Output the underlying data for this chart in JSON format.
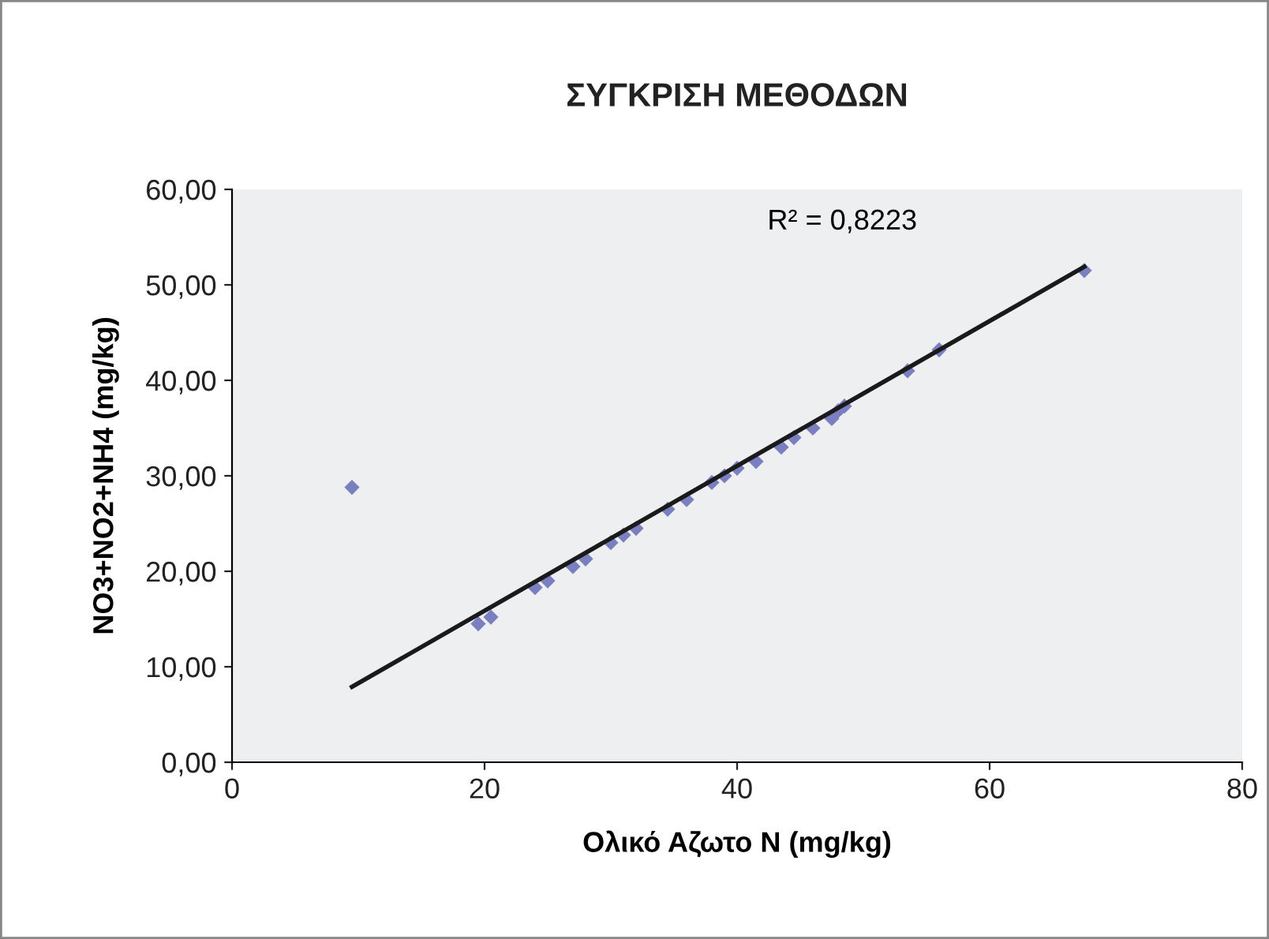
{
  "chart_data": {
    "type": "scatter",
    "title": "ΣΥΓΚΡΙΣΗ ΜΕΘΟΔΩΝ",
    "xlabel": "Ολικό Αζωτο Ν (mg/kg)",
    "ylabel": "NO3+NO2+NH4 (mg/kg)",
    "annotations": [
      "R² = 0,8223"
    ],
    "series": [
      {
        "color": "#7a7fc0",
        "marker": "diamond",
        "x": [
          9.5,
          19.5,
          20.5,
          24,
          25,
          27,
          28,
          30,
          31,
          32,
          34.5,
          36,
          38,
          39,
          40,
          41.5,
          43.5,
          44.5,
          46,
          47.5,
          48,
          48.5,
          53.5,
          56,
          67.5
        ],
        "values": [
          28.8,
          14.5,
          15.2,
          18.3,
          19,
          20.5,
          21.3,
          23,
          23.8,
          24.5,
          26.5,
          27.5,
          29.3,
          30,
          30.8,
          31.5,
          33,
          34,
          35,
          36,
          36.8,
          37.3,
          41,
          43.2,
          51.5
        ]
      },
      {
        "type": "line",
        "color": "#1a1a1a",
        "marker": "none",
        "line_style": "solid",
        "x": [
          9.5,
          67.5
        ],
        "values": [
          7.9,
          51.9
        ]
      }
    ],
    "xlim": [
      0,
      80
    ],
    "xticks": [
      0,
      20,
      40,
      60,
      80
    ],
    "ylim": [
      0,
      60
    ],
    "yticks": [
      {
        "value": 0,
        "label": "0,00"
      },
      {
        "value": 10,
        "label": "10,00"
      },
      {
        "value": 20,
        "label": "20,00"
      },
      {
        "value": 30,
        "label": "30,00"
      },
      {
        "value": 40,
        "label": "40,00"
      },
      {
        "value": 50,
        "label": "50,00"
      },
      {
        "value": 60,
        "label": "60,00"
      }
    ],
    "grid": false,
    "legend": false
  }
}
